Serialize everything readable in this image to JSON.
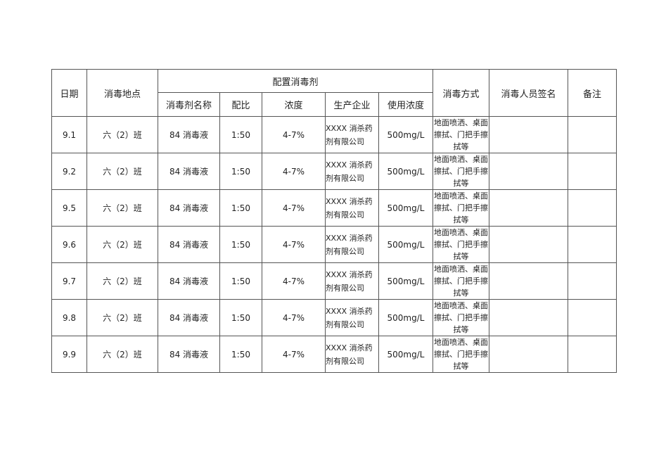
{
  "headers": {
    "date": "日期",
    "location": "消毒地点",
    "config_group": "配置消毒剂",
    "name": "消毒剂名称",
    "ratio": "配比",
    "concentration": "浓度",
    "manufacturer": "生产企业",
    "use_concentration": "使用浓度",
    "method": "消毒方式",
    "signature": "消毒人员签名",
    "remarks": "备注"
  },
  "rows": [
    {
      "date": "9.1",
      "location": "六（2）班",
      "name": "84 消毒液",
      "ratio": "1:50",
      "concentration": "4-7%",
      "manufacturer": "XXXX 消杀药剂有限公司",
      "use_concentration": "500mg/L",
      "method": "地面喷洒、桌面擦拭、门把手擦拭等",
      "signature": "",
      "remarks": ""
    },
    {
      "date": "9.2",
      "location": "六（2）班",
      "name": "84 消毒液",
      "ratio": "1:50",
      "concentration": "4-7%",
      "manufacturer": "XXXX 消杀药剂有限公司",
      "use_concentration": "500mg/L",
      "method": "地面喷洒、桌面擦拭、门把手擦拭等",
      "signature": "",
      "remarks": ""
    },
    {
      "date": "9.5",
      "location": "六（2）班",
      "name": "84 消毒液",
      "ratio": "1:50",
      "concentration": "4-7%",
      "manufacturer": "XXXX 消杀药剂有限公司",
      "use_concentration": "500mg/L",
      "method": "地面喷洒、桌面擦拭、门把手擦拭等",
      "signature": "",
      "remarks": ""
    },
    {
      "date": "9.6",
      "location": "六（2）班",
      "name": "84 消毒液",
      "ratio": "1:50",
      "concentration": "4-7%",
      "manufacturer": "XXXX 消杀药剂有限公司",
      "use_concentration": "500mg/L",
      "method": "地面喷洒、桌面擦拭、门把手擦拭等",
      "signature": "",
      "remarks": ""
    },
    {
      "date": "9.7",
      "location": "六（2）班",
      "name": "84 消毒液",
      "ratio": "1:50",
      "concentration": "4-7%",
      "manufacturer": "XXXX 消杀药剂有限公司",
      "use_concentration": "500mg/L",
      "method": "地面喷洒、桌面擦拭、门把手擦拭等",
      "signature": "",
      "remarks": ""
    },
    {
      "date": "9.8",
      "location": "六（2）班",
      "name": "84 消毒液",
      "ratio": "1:50",
      "concentration": "4-7%",
      "manufacturer": "XXXX 消杀药剂有限公司",
      "use_concentration": "500mg/L",
      "method": "地面喷洒、桌面擦拭、门把手擦拭等",
      "signature": "",
      "remarks": ""
    },
    {
      "date": "9.9",
      "location": "六（2）班",
      "name": "84 消毒液",
      "ratio": "1:50",
      "concentration": "4-7%",
      "manufacturer": "XXXX 消杀药剂有限公司",
      "use_concentration": "500mg/L",
      "method": "地面喷洒、桌面擦拭、门把手擦拭等",
      "signature": "",
      "remarks": ""
    }
  ]
}
